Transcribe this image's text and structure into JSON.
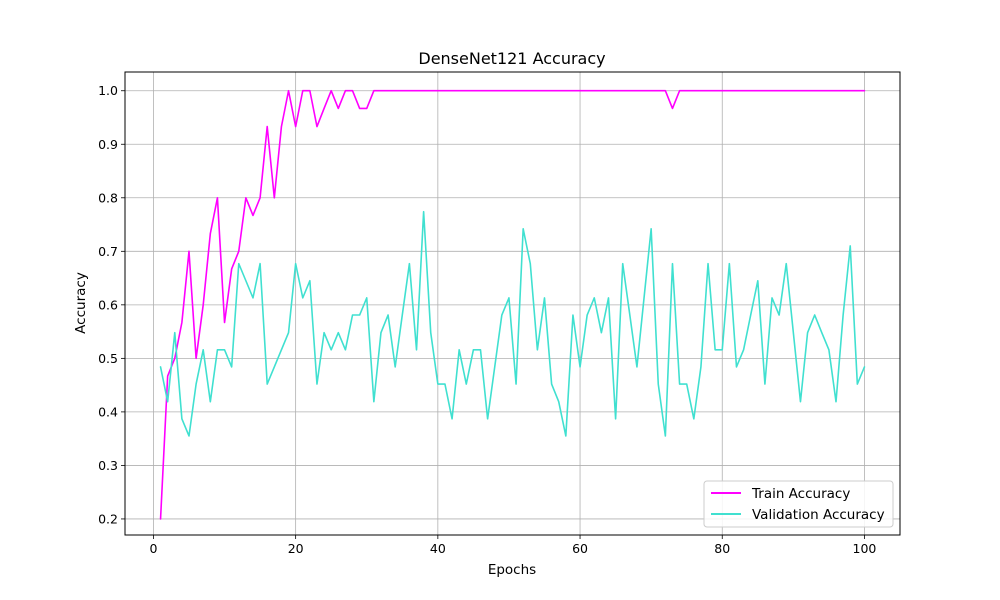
{
  "chart_data": {
    "type": "line",
    "title": "DenseNet121 Accuracy",
    "xlabel": "Epochs",
    "ylabel": "Accuracy",
    "xlim": [
      -4,
      105
    ],
    "ylim": [
      0.17,
      1.035
    ],
    "xticks": [
      0,
      20,
      40,
      60,
      80,
      100
    ],
    "yticks": [
      0.2,
      0.3,
      0.4,
      0.5,
      0.6,
      0.7,
      0.8,
      0.9,
      1.0
    ],
    "grid": true,
    "legend_position": "lower-right",
    "x": [
      1,
      2,
      3,
      4,
      5,
      6,
      7,
      8,
      9,
      10,
      11,
      12,
      13,
      14,
      15,
      16,
      17,
      18,
      19,
      20,
      21,
      22,
      23,
      24,
      25,
      26,
      27,
      28,
      29,
      30,
      31,
      32,
      33,
      34,
      35,
      36,
      37,
      38,
      39,
      40,
      41,
      42,
      43,
      44,
      45,
      46,
      47,
      48,
      49,
      50,
      51,
      52,
      53,
      54,
      55,
      56,
      57,
      58,
      59,
      60,
      61,
      62,
      63,
      64,
      65,
      66,
      67,
      68,
      69,
      70,
      71,
      72,
      73,
      74,
      75,
      76,
      77,
      78,
      79,
      80,
      81,
      82,
      83,
      84,
      85,
      86,
      87,
      88,
      89,
      90,
      91,
      92,
      93,
      94,
      95,
      96,
      97,
      98,
      99,
      100
    ],
    "series": [
      {
        "name": "Train Accuracy",
        "color": "#ff00ff",
        "values": [
          0.2,
          0.467,
          0.5,
          0.567,
          0.7,
          0.5,
          0.6,
          0.733,
          0.8,
          0.567,
          0.667,
          0.7,
          0.8,
          0.767,
          0.8,
          0.933,
          0.8,
          0.933,
          1.0,
          0.933,
          1.0,
          1.0,
          0.933,
          0.967,
          1.0,
          0.967,
          1.0,
          1.0,
          0.967,
          0.967,
          1.0,
          1.0,
          1.0,
          1.0,
          1.0,
          1.0,
          1.0,
          1.0,
          1.0,
          1.0,
          1.0,
          1.0,
          1.0,
          1.0,
          1.0,
          1.0,
          1.0,
          1.0,
          1.0,
          1.0,
          1.0,
          1.0,
          1.0,
          1.0,
          1.0,
          1.0,
          1.0,
          1.0,
          1.0,
          1.0,
          1.0,
          1.0,
          1.0,
          1.0,
          1.0,
          1.0,
          1.0,
          1.0,
          1.0,
          1.0,
          1.0,
          1.0,
          0.967,
          1.0,
          1.0,
          1.0,
          1.0,
          1.0,
          1.0,
          1.0,
          1.0,
          1.0,
          1.0,
          1.0,
          1.0,
          1.0,
          1.0,
          1.0,
          1.0,
          1.0,
          1.0,
          1.0,
          1.0,
          1.0,
          1.0,
          1.0,
          1.0,
          1.0,
          1.0,
          1.0
        ]
      },
      {
        "name": "Validation Accuracy",
        "color": "#40e0d0",
        "values": [
          0.484,
          0.419,
          0.548,
          0.387,
          0.355,
          0.452,
          0.516,
          0.419,
          0.516,
          0.516,
          0.484,
          0.677,
          0.645,
          0.613,
          0.677,
          0.452,
          0.484,
          0.516,
          0.548,
          0.677,
          0.613,
          0.645,
          0.452,
          0.548,
          0.516,
          0.548,
          0.516,
          0.581,
          0.581,
          0.613,
          0.419,
          0.548,
          0.581,
          0.484,
          0.581,
          0.677,
          0.516,
          0.774,
          0.548,
          0.452,
          0.452,
          0.387,
          0.516,
          0.452,
          0.516,
          0.516,
          0.387,
          0.484,
          0.581,
          0.613,
          0.452,
          0.742,
          0.677,
          0.516,
          0.613,
          0.452,
          0.419,
          0.355,
          0.581,
          0.484,
          0.581,
          0.613,
          0.548,
          0.613,
          0.387,
          0.677,
          0.581,
          0.484,
          0.613,
          0.742,
          0.452,
          0.355,
          0.677,
          0.452,
          0.452,
          0.387,
          0.484,
          0.677,
          0.516,
          0.516,
          0.677,
          0.484,
          0.516,
          0.581,
          0.645,
          0.452,
          0.613,
          0.581,
          0.677,
          0.548,
          0.419,
          0.548,
          0.581,
          0.548,
          0.516,
          0.419,
          0.581,
          0.71,
          0.452,
          0.484
        ]
      }
    ]
  }
}
